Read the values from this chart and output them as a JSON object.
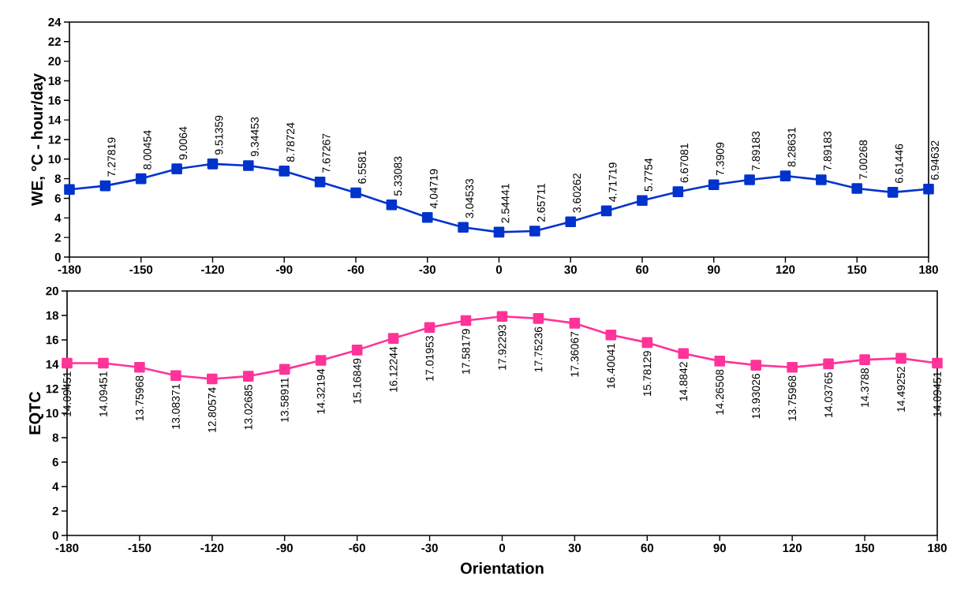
{
  "chart_data": [
    {
      "type": "line",
      "ylabel": "WE, °C - hour/day",
      "x": [
        -180,
        -165,
        -150,
        -135,
        -120,
        -105,
        -90,
        -75,
        -60,
        -45,
        -30,
        -15,
        0,
        15,
        30,
        45,
        60,
        75,
        90,
        105,
        120,
        135,
        150,
        165,
        180
      ],
      "series": [
        {
          "color": "#0033cc",
          "values": [
            6.9,
            7.27819,
            8.00454,
            9.0064,
            9.51359,
            9.34453,
            8.78724,
            7.67267,
            6.5581,
            5.33083,
            4.04719,
            3.04533,
            2.54441,
            2.65711,
            3.60262,
            4.71719,
            5.7754,
            6.67081,
            7.3909,
            7.89183,
            8.28631,
            7.89183,
            7.00268,
            6.61446,
            6.94632
          ],
          "value_labels": [
            null,
            "7.27819",
            "8.00454",
            "9.0064",
            "9.51359",
            "9.34453",
            "8.78724",
            "7.67267",
            "6.5581",
            "5.33083",
            "4.04719",
            "3.04533",
            "2.54441",
            "2.65711",
            "3.60262",
            "4.71719",
            "5.7754",
            "6.67081",
            "7.3909",
            "7.89183",
            "8.28631",
            "7.89183",
            "7.00268",
            "6.61446",
            "6.94632"
          ]
        }
      ],
      "xlim": [
        -180,
        180
      ],
      "xticks": [
        -180,
        -150,
        -120,
        -90,
        -60,
        -30,
        0,
        30,
        60,
        90,
        120,
        150,
        180
      ],
      "ylim": [
        0,
        24
      ],
      "yticks": [
        0,
        2,
        4,
        6,
        8,
        10,
        12,
        14,
        16,
        18,
        20,
        22,
        24
      ],
      "marker": "square"
    },
    {
      "type": "line",
      "xlabel": "Orientation",
      "ylabel": "EQTC",
      "x": [
        -180,
        -165,
        -150,
        -135,
        -120,
        -105,
        -90,
        -75,
        -60,
        -45,
        -30,
        -15,
        0,
        15,
        30,
        45,
        60,
        75,
        90,
        105,
        120,
        135,
        150,
        165,
        180
      ],
      "series": [
        {
          "color": "#ff3399",
          "values": [
            14.09451,
            14.09451,
            13.75968,
            13.08371,
            12.80574,
            13.02685,
            13.58911,
            14.32194,
            15.16849,
            16.12244,
            17.01953,
            17.58179,
            17.92293,
            17.75236,
            17.36067,
            16.40041,
            15.78129,
            14.8842,
            14.26508,
            13.93026,
            13.75968,
            14.03765,
            14.3788,
            14.49252,
            14.09451
          ]
        }
      ],
      "data_labels": true,
      "xlim": [
        -180,
        180
      ],
      "xticks": [
        -180,
        -150,
        -120,
        -90,
        -60,
        -30,
        0,
        30,
        60,
        90,
        120,
        150,
        180
      ],
      "ylim": [
        0,
        20
      ],
      "yticks": [
        0,
        2,
        4,
        6,
        8,
        10,
        12,
        14,
        16,
        18,
        20
      ],
      "marker": "square"
    }
  ]
}
